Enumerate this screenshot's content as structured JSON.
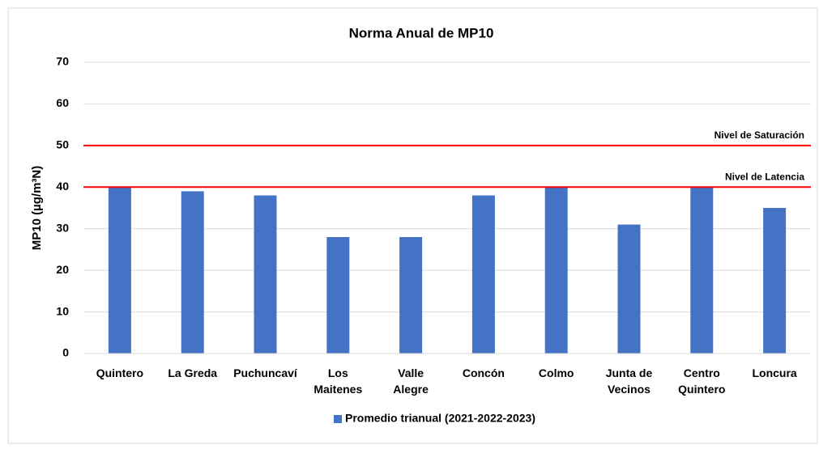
{
  "chart_data": {
    "type": "bar",
    "title": "Norma Anual de MP10",
    "y_label": "MP10 (µg/m³N)",
    "categories": [
      "Quintero",
      "La Greda",
      "Puchuncaví",
      "Los\nMaitenes",
      "Valle\nAlegre",
      "Concón",
      "Colmo",
      "Junta de\nVecinos",
      "Centro\nQuintero",
      "Loncura"
    ],
    "series": [
      {
        "name": "Promedio trianual (2021-2022-2023)",
        "color": "#4472c4",
        "values": [
          40,
          39,
          38,
          28,
          28,
          38,
          40,
          31,
          40,
          35
        ]
      }
    ],
    "reference_lines": [
      {
        "label": "Nivel de Saturación",
        "value": 50,
        "color": "#ff0000"
      },
      {
        "label": "Nivel de Latencia",
        "value": 40,
        "color": "#ff0000"
      }
    ],
    "ylim": [
      0,
      70
    ],
    "yticks": [
      0,
      10,
      20,
      30,
      40,
      50,
      60,
      70
    ],
    "grid": true,
    "legend": "bottom"
  }
}
